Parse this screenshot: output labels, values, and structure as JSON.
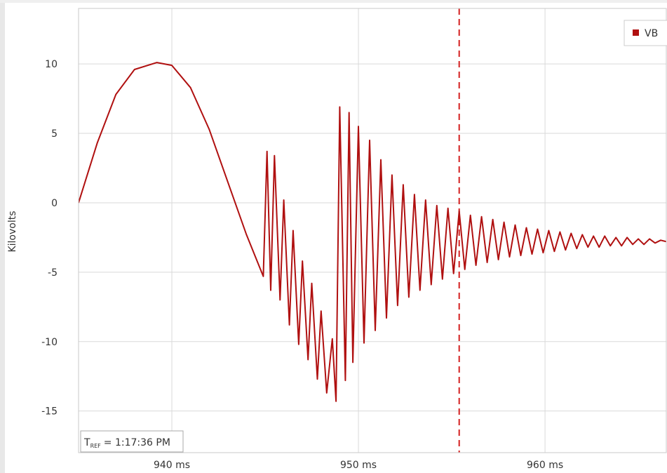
{
  "chart_data": {
    "type": "line",
    "title": "",
    "xlabel": "",
    "ylabel": "Kilovolts",
    "x_unit": "ms",
    "xlim": [
      935,
      966.5
    ],
    "ylim": [
      -18,
      14
    ],
    "x_ticks": [
      {
        "value": 940,
        "label": "940 ms"
      },
      {
        "value": 950,
        "label": "950 ms"
      },
      {
        "value": 960,
        "label": "960 ms"
      }
    ],
    "y_ticks": [
      {
        "value": 10,
        "label": "10"
      },
      {
        "value": 5,
        "label": "5"
      },
      {
        "value": 0,
        "label": "0"
      },
      {
        "value": -5,
        "label": "-5"
      },
      {
        "value": -10,
        "label": "-10"
      },
      {
        "value": -15,
        "label": "-15"
      }
    ],
    "grid": true,
    "legend_position": "top-right",
    "series": [
      {
        "name": "VB",
        "color": "#b01010",
        "points": [
          [
            935.0,
            0.0
          ],
          [
            936.0,
            4.3
          ],
          [
            937.0,
            7.8
          ],
          [
            938.0,
            9.6
          ],
          [
            939.2,
            10.1
          ],
          [
            940.0,
            9.9
          ],
          [
            941.0,
            8.3
          ],
          [
            942.0,
            5.3
          ],
          [
            943.0,
            1.5
          ],
          [
            944.0,
            -2.3
          ],
          [
            944.9,
            -5.3
          ],
          [
            945.1,
            3.7
          ],
          [
            945.3,
            -6.3
          ],
          [
            945.5,
            3.4
          ],
          [
            945.8,
            -7.0
          ],
          [
            946.0,
            0.2
          ],
          [
            946.3,
            -8.8
          ],
          [
            946.5,
            -2.0
          ],
          [
            946.8,
            -10.2
          ],
          [
            947.0,
            -4.2
          ],
          [
            947.3,
            -11.3
          ],
          [
            947.5,
            -5.8
          ],
          [
            947.8,
            -12.7
          ],
          [
            948.0,
            -7.8
          ],
          [
            948.3,
            -13.7
          ],
          [
            948.6,
            -9.8
          ],
          [
            948.8,
            -14.3
          ],
          [
            949.0,
            6.9
          ],
          [
            949.3,
            -12.8
          ],
          [
            949.5,
            6.5
          ],
          [
            949.7,
            -11.5
          ],
          [
            950.0,
            5.5
          ],
          [
            950.3,
            -10.1
          ],
          [
            950.6,
            4.5
          ],
          [
            950.9,
            -9.2
          ],
          [
            951.2,
            3.1
          ],
          [
            951.5,
            -8.3
          ],
          [
            951.8,
            2.0
          ],
          [
            952.1,
            -7.4
          ],
          [
            952.4,
            1.3
          ],
          [
            952.7,
            -6.8
          ],
          [
            953.0,
            0.6
          ],
          [
            953.3,
            -6.3
          ],
          [
            953.6,
            0.2
          ],
          [
            953.9,
            -5.9
          ],
          [
            954.2,
            -0.2
          ],
          [
            954.5,
            -5.5
          ],
          [
            954.8,
            -0.4
          ],
          [
            955.1,
            -5.1
          ],
          [
            955.4,
            -0.6
          ],
          [
            955.7,
            -4.8
          ],
          [
            956.0,
            -0.9
          ],
          [
            956.3,
            -4.5
          ],
          [
            956.6,
            -1.0
          ],
          [
            956.9,
            -4.3
          ],
          [
            957.2,
            -1.2
          ],
          [
            957.5,
            -4.1
          ],
          [
            957.8,
            -1.4
          ],
          [
            958.1,
            -3.9
          ],
          [
            958.4,
            -1.6
          ],
          [
            958.7,
            -3.8
          ],
          [
            959.0,
            -1.8
          ],
          [
            959.3,
            -3.7
          ],
          [
            959.6,
            -1.9
          ],
          [
            959.9,
            -3.6
          ],
          [
            960.2,
            -2.0
          ],
          [
            960.5,
            -3.5
          ],
          [
            960.8,
            -2.1
          ],
          [
            961.1,
            -3.4
          ],
          [
            961.4,
            -2.2
          ],
          [
            961.7,
            -3.3
          ],
          [
            962.0,
            -2.3
          ],
          [
            962.3,
            -3.2
          ],
          [
            962.6,
            -2.4
          ],
          [
            962.9,
            -3.2
          ],
          [
            963.2,
            -2.4
          ],
          [
            963.5,
            -3.1
          ],
          [
            963.8,
            -2.5
          ],
          [
            964.1,
            -3.1
          ],
          [
            964.4,
            -2.5
          ],
          [
            964.7,
            -3.0
          ],
          [
            965.0,
            -2.6
          ],
          [
            965.3,
            -3.0
          ],
          [
            965.6,
            -2.6
          ],
          [
            965.9,
            -2.9
          ],
          [
            966.2,
            -2.7
          ],
          [
            966.5,
            -2.8
          ]
        ]
      }
    ],
    "reference_line": {
      "x": 955.4,
      "color": "#d42020",
      "style": "dashed"
    },
    "annotation": {
      "tref_prefix": "T",
      "tref_sub": "REF",
      "tref_value": "= 1:17:36 PM"
    }
  }
}
